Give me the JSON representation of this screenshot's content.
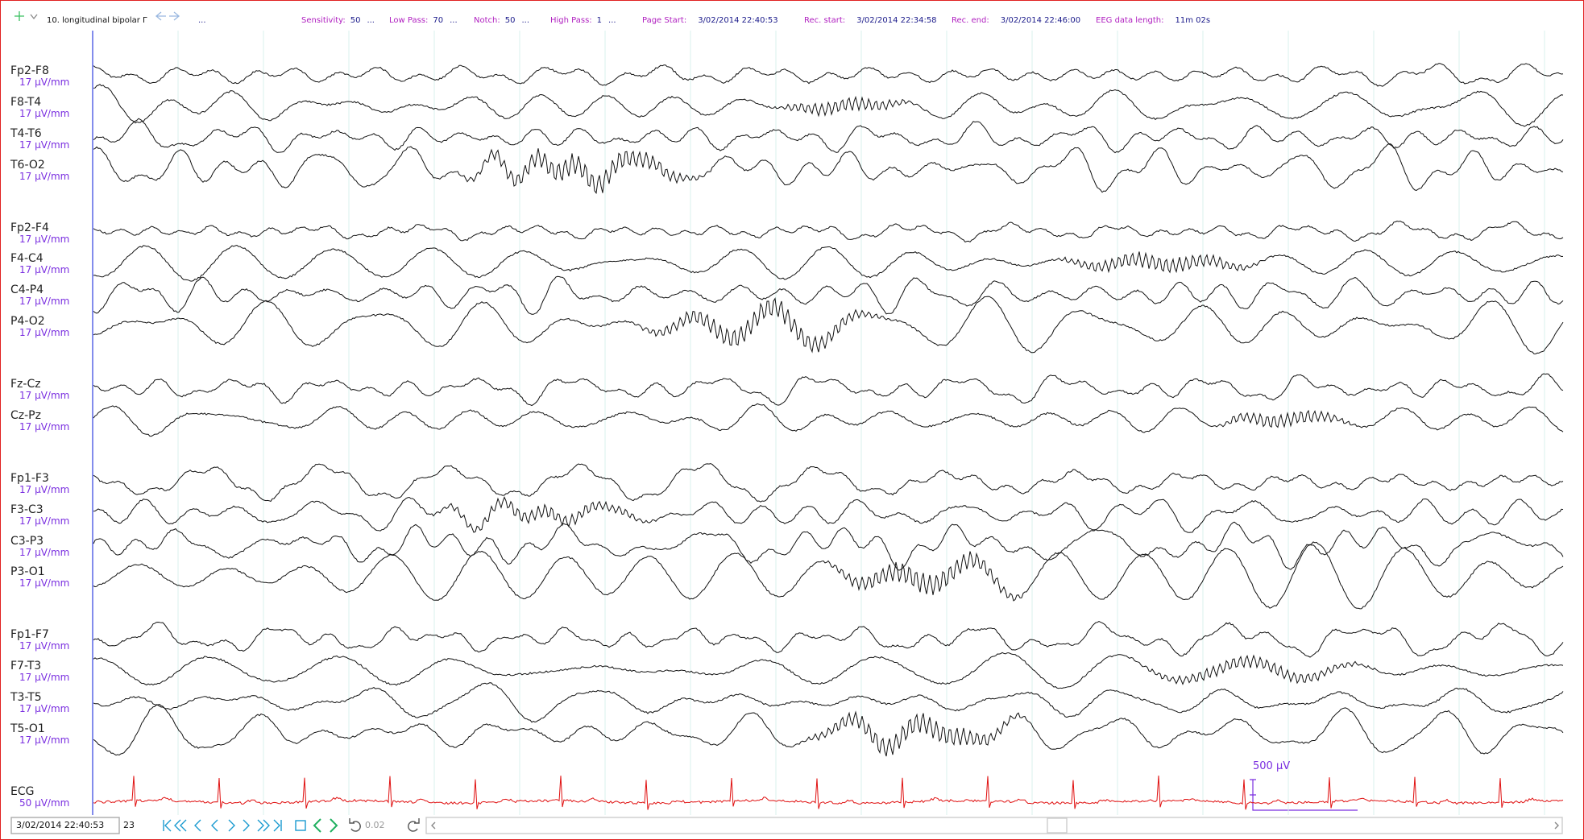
{
  "toolbar": {
    "montage": "10. longitudinal bipolar Γ",
    "more": "...",
    "settings": [
      {
        "label": "Sensitivity:",
        "value": "50",
        "more": "..."
      },
      {
        "label": "Low Pass:",
        "value": "70",
        "more": "..."
      },
      {
        "label": "Notch:",
        "value": "50",
        "more": "..."
      },
      {
        "label": "High Pass:",
        "value": "1",
        "more": "..."
      }
    ],
    "info": [
      {
        "label": "Page Start:",
        "value": "3/02/2014 22:40:53"
      },
      {
        "label": "Rec. start:",
        "value": "3/02/2014 22:34:58"
      },
      {
        "label": "Rec. end:",
        "value": "3/02/2014 22:46:00"
      },
      {
        "label": "EEG data length:",
        "value": "11m 02s"
      }
    ]
  },
  "channel_groups": [
    [
      {
        "name": "Fp2-F8",
        "sensitivity": "17 µV/mm"
      },
      {
        "name": "F8-T4",
        "sensitivity": "17 µV/mm"
      },
      {
        "name": "T4-T6",
        "sensitivity": "17 µV/mm"
      },
      {
        "name": "T6-O2",
        "sensitivity": "17 µV/mm"
      }
    ],
    [
      {
        "name": "Fp2-F4",
        "sensitivity": "17 µV/mm"
      },
      {
        "name": "F4-C4",
        "sensitivity": "17 µV/mm"
      },
      {
        "name": "C4-P4",
        "sensitivity": "17 µV/mm"
      },
      {
        "name": "P4-O2",
        "sensitivity": "17 µV/mm"
      }
    ],
    [
      {
        "name": "Fz-Cz",
        "sensitivity": "17 µV/mm"
      },
      {
        "name": "Cz-Pz",
        "sensitivity": "17 µV/mm"
      }
    ],
    [
      {
        "name": "Fp1-F3",
        "sensitivity": "17 µV/mm"
      },
      {
        "name": "F3-C3",
        "sensitivity": "17 µV/mm"
      },
      {
        "name": "C3-P3",
        "sensitivity": "17 µV/mm"
      },
      {
        "name": "P3-O1",
        "sensitivity": "17 µV/mm"
      }
    ],
    [
      {
        "name": "Fp1-F7",
        "sensitivity": "17 µV/mm"
      },
      {
        "name": "F7-T3",
        "sensitivity": "17 µV/mm"
      },
      {
        "name": "T3-T5",
        "sensitivity": "17 µV/mm"
      },
      {
        "name": "T5-O1",
        "sensitivity": "17 µV/mm"
      }
    ],
    [
      {
        "name": "ECG",
        "sensitivity": "50 µV/mm"
      }
    ]
  ],
  "bottom": {
    "date": "3/02/2014 22:40:53",
    "page": "23",
    "step": "0.02",
    "scale": "500 µV"
  }
}
